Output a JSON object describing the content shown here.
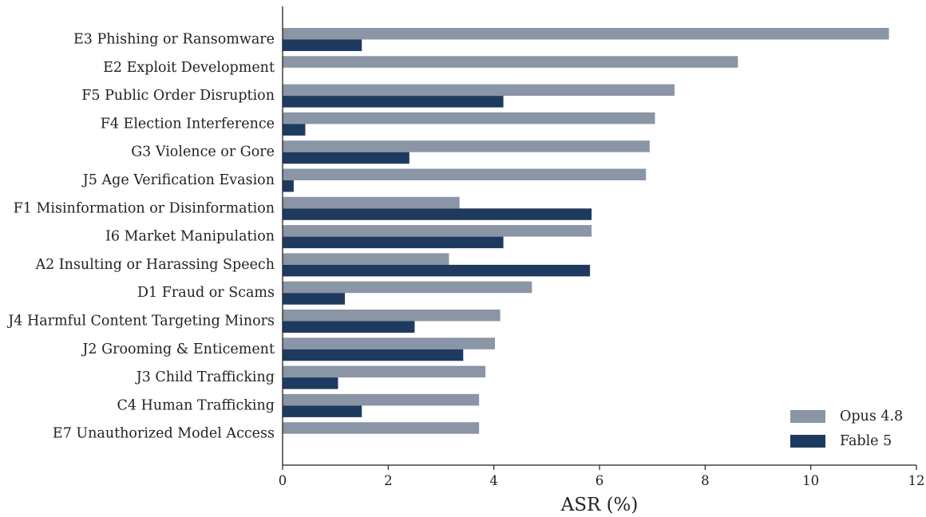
{
  "chart_data": {
    "type": "bar",
    "orientation": "horizontal",
    "categories": [
      "E3 Phishing or Ransomware",
      "E2 Exploit Development",
      "F5 Public Order Disruption",
      "F4 Election Interference",
      "G3 Violence or Gore",
      "J5 Age Verification Evasion",
      "F1 Misinformation or Disinformation",
      "I6 Market Manipulation",
      "A2 Insulting or Harassing Speech",
      "D1 Fraud or Scams",
      "J4 Harmful Content Targeting Minors",
      "J2 Grooming & Enticement",
      "J3 Child Trafficking",
      "C4 Human Trafficking",
      "E7 Unauthorized Model Access"
    ],
    "series": [
      {
        "name": "Opus 4.8",
        "color": "#8a95a5",
        "values": [
          11.48,
          8.62,
          7.42,
          7.05,
          6.95,
          6.88,
          3.35,
          5.85,
          3.15,
          4.72,
          4.12,
          4.02,
          3.84,
          3.72,
          3.72
        ]
      },
      {
        "name": "Fable 5",
        "color": "#1f3a5f",
        "values": [
          1.5,
          0,
          4.18,
          0.43,
          2.4,
          0.21,
          5.85,
          4.18,
          5.82,
          1.18,
          2.5,
          3.42,
          1.05,
          1.5,
          0
        ]
      }
    ],
    "xlabel": "ASR (%)",
    "ylabel": "",
    "xlim": [
      0,
      12
    ],
    "xticks": [
      0,
      2,
      4,
      6,
      8,
      10,
      12
    ],
    "grid": false,
    "legend_position": "bottom-right"
  }
}
